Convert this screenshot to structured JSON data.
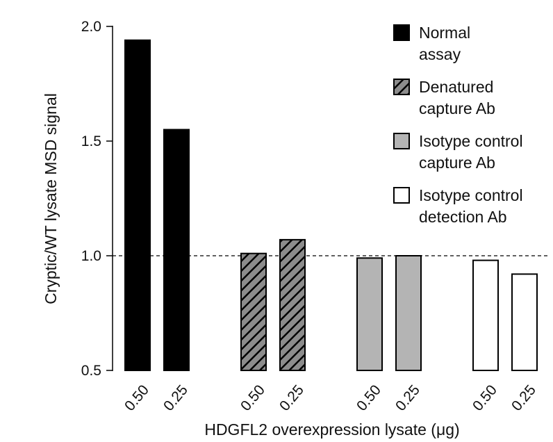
{
  "chart_data": {
    "type": "bar",
    "title": "",
    "xlabel": "HDGFL2 overexpression lysate (μg)",
    "ylabel": "Cryptic/WT lysate MSD signal",
    "ylim": [
      0.5,
      2.0
    ],
    "yticks": [
      "0.5",
      "1.0",
      "1.5",
      "2.0"
    ],
    "reference_line": {
      "y": 1.0,
      "style": "dashed"
    },
    "legend_position": "top-right",
    "groups": [
      {
        "name": "Normal assay",
        "legend_lines": [
          "Normal",
          "assay"
        ],
        "fill": "solid",
        "color": "#000000",
        "categories": [
          "0.50",
          "0.25"
        ],
        "values": [
          1.94,
          1.55
        ]
      },
      {
        "name": "Denatured capture Ab",
        "legend_lines": [
          "Denatured",
          "capture Ab"
        ],
        "fill": "hatched",
        "color": "#8c8c8c",
        "categories": [
          "0.50",
          "0.25"
        ],
        "values": [
          1.01,
          1.07
        ]
      },
      {
        "name": "Isotype control capture Ab",
        "legend_lines": [
          "Isotype control",
          "capture Ab"
        ],
        "fill": "solid",
        "color": "#b4b4b4",
        "categories": [
          "0.50",
          "0.25"
        ],
        "values": [
          0.99,
          1.0
        ]
      },
      {
        "name": "Isotype control detection Ab",
        "legend_lines": [
          "Isotype control",
          "detection Ab"
        ],
        "fill": "solid",
        "color": "#ffffff",
        "categories": [
          "0.50",
          "0.25"
        ],
        "values": [
          0.98,
          0.92
        ]
      }
    ]
  }
}
